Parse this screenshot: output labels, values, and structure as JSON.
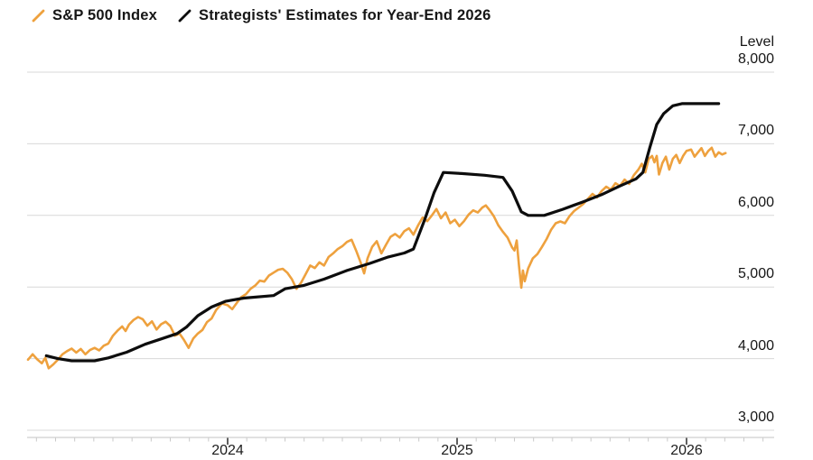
{
  "legend": {
    "series1_label": "S&P 500 Index",
    "series2_label": "Strategists' Estimates for Year-End 2026"
  },
  "y_axis": {
    "title": "Level",
    "tick_labels": [
      "8,000",
      "7,000",
      "6,000",
      "5,000",
      "4,000",
      "3,000"
    ],
    "tick_values": [
      8000,
      7000,
      6000,
      5000,
      4000,
      3000
    ]
  },
  "x_axis": {
    "tick_labels": [
      "2024",
      "2025",
      "2026"
    ],
    "tick_values": [
      2024,
      2025,
      2026
    ]
  },
  "colors": {
    "sp500_line": "#EEA13E",
    "estimate_line": "#0D0D0D",
    "gridline": "#D8D8D8",
    "axis_line": "#CFCFCF",
    "minor_tick": "#C9C9C9",
    "year_tick": "#2B2B2B",
    "text": "#161616",
    "background": "#FFFFFF"
  },
  "chart_data": {
    "type": "line",
    "title": "",
    "xlabel": "",
    "ylabel": "Level",
    "ylim": [
      3000,
      8000
    ],
    "xlim_decimal_years": [
      2023.12,
      2026.38
    ],
    "grid": "horizontal-only",
    "legend_position": "top-left",
    "x_tick_years": [
      2024,
      2025,
      2026
    ],
    "minor_ticks": "monthly",
    "y_ticks": [
      8000,
      7000,
      6000,
      5000,
      4000,
      3000
    ],
    "series": [
      {
        "name": "S&P 500 Index",
        "color": "#EEA13E",
        "width": 2.6,
        "points": [
          [
            2023.13,
            3985
          ],
          [
            2023.15,
            4060
          ],
          [
            2023.17,
            3990
          ],
          [
            2023.19,
            3935
          ],
          [
            2023.205,
            4010
          ],
          [
            2023.22,
            3865
          ],
          [
            2023.24,
            3920
          ],
          [
            2023.26,
            3985
          ],
          [
            2023.28,
            4060
          ],
          [
            2023.3,
            4105
          ],
          [
            2023.32,
            4140
          ],
          [
            2023.34,
            4085
          ],
          [
            2023.36,
            4135
          ],
          [
            2023.38,
            4060
          ],
          [
            2023.4,
            4120
          ],
          [
            2023.42,
            4150
          ],
          [
            2023.44,
            4115
          ],
          [
            2023.46,
            4180
          ],
          [
            2023.48,
            4210
          ],
          [
            2023.5,
            4320
          ],
          [
            2023.52,
            4390
          ],
          [
            2023.54,
            4450
          ],
          [
            2023.555,
            4385
          ],
          [
            2023.57,
            4475
          ],
          [
            2023.59,
            4540
          ],
          [
            2023.61,
            4580
          ],
          [
            2023.63,
            4550
          ],
          [
            2023.65,
            4460
          ],
          [
            2023.67,
            4520
          ],
          [
            2023.69,
            4405
          ],
          [
            2023.71,
            4480
          ],
          [
            2023.73,
            4515
          ],
          [
            2023.75,
            4455
          ],
          [
            2023.77,
            4320
          ],
          [
            2023.79,
            4350
          ],
          [
            2023.81,
            4260
          ],
          [
            2023.83,
            4150
          ],
          [
            2023.85,
            4280
          ],
          [
            2023.87,
            4350
          ],
          [
            2023.89,
            4400
          ],
          [
            2023.91,
            4510
          ],
          [
            2023.93,
            4560
          ],
          [
            2023.95,
            4680
          ],
          [
            2023.975,
            4770
          ],
          [
            2024.0,
            4745
          ],
          [
            2024.02,
            4690
          ],
          [
            2024.04,
            4780
          ],
          [
            2024.06,
            4860
          ],
          [
            2024.08,
            4900
          ],
          [
            2024.1,
            4975
          ],
          [
            2024.12,
            5020
          ],
          [
            2024.14,
            5090
          ],
          [
            2024.16,
            5075
          ],
          [
            2024.18,
            5160
          ],
          [
            2024.2,
            5200
          ],
          [
            2024.22,
            5240
          ],
          [
            2024.24,
            5255
          ],
          [
            2024.26,
            5200
          ],
          [
            2024.28,
            5110
          ],
          [
            2024.3,
            4975
          ],
          [
            2024.32,
            5060
          ],
          [
            2024.34,
            5180
          ],
          [
            2024.36,
            5300
          ],
          [
            2024.38,
            5265
          ],
          [
            2024.4,
            5345
          ],
          [
            2024.42,
            5300
          ],
          [
            2024.44,
            5420
          ],
          [
            2024.46,
            5470
          ],
          [
            2024.48,
            5530
          ],
          [
            2024.5,
            5570
          ],
          [
            2024.52,
            5630
          ],
          [
            2024.54,
            5660
          ],
          [
            2024.56,
            5510
          ],
          [
            2024.58,
            5340
          ],
          [
            2024.595,
            5190
          ],
          [
            2024.61,
            5400
          ],
          [
            2024.63,
            5560
          ],
          [
            2024.65,
            5640
          ],
          [
            2024.67,
            5470
          ],
          [
            2024.69,
            5590
          ],
          [
            2024.71,
            5700
          ],
          [
            2024.73,
            5740
          ],
          [
            2024.75,
            5690
          ],
          [
            2024.77,
            5780
          ],
          [
            2024.79,
            5820
          ],
          [
            2024.81,
            5730
          ],
          [
            2024.83,
            5860
          ],
          [
            2024.85,
            5970
          ],
          [
            2024.87,
            5920
          ],
          [
            2024.89,
            6000
          ],
          [
            2024.91,
            6090
          ],
          [
            2024.93,
            5960
          ],
          [
            2024.95,
            6040
          ],
          [
            2024.97,
            5890
          ],
          [
            2024.99,
            5940
          ],
          [
            2025.01,
            5850
          ],
          [
            2025.03,
            5920
          ],
          [
            2025.05,
            6010
          ],
          [
            2025.07,
            6070
          ],
          [
            2025.09,
            6040
          ],
          [
            2025.11,
            6110
          ],
          [
            2025.125,
            6140
          ],
          [
            2025.14,
            6080
          ],
          [
            2025.16,
            5990
          ],
          [
            2025.18,
            5860
          ],
          [
            2025.2,
            5770
          ],
          [
            2025.22,
            5690
          ],
          [
            2025.24,
            5550
          ],
          [
            2025.25,
            5510
          ],
          [
            2025.26,
            5650
          ],
          [
            2025.27,
            5290
          ],
          [
            2025.28,
            4990
          ],
          [
            2025.287,
            5230
          ],
          [
            2025.295,
            5080
          ],
          [
            2025.31,
            5260
          ],
          [
            2025.33,
            5400
          ],
          [
            2025.35,
            5460
          ],
          [
            2025.37,
            5560
          ],
          [
            2025.39,
            5670
          ],
          [
            2025.41,
            5800
          ],
          [
            2025.43,
            5890
          ],
          [
            2025.45,
            5915
          ],
          [
            2025.47,
            5890
          ],
          [
            2025.49,
            5990
          ],
          [
            2025.51,
            6060
          ],
          [
            2025.53,
            6110
          ],
          [
            2025.55,
            6160
          ],
          [
            2025.57,
            6230
          ],
          [
            2025.59,
            6300
          ],
          [
            2025.61,
            6250
          ],
          [
            2025.63,
            6340
          ],
          [
            2025.65,
            6400
          ],
          [
            2025.67,
            6360
          ],
          [
            2025.69,
            6450
          ],
          [
            2025.71,
            6410
          ],
          [
            2025.73,
            6500
          ],
          [
            2025.75,
            6440
          ],
          [
            2025.77,
            6560
          ],
          [
            2025.79,
            6640
          ],
          [
            2025.805,
            6720
          ],
          [
            2025.82,
            6600
          ],
          [
            2025.835,
            6790
          ],
          [
            2025.85,
            6830
          ],
          [
            2025.86,
            6740
          ],
          [
            2025.87,
            6830
          ],
          [
            2025.88,
            6570
          ],
          [
            2025.895,
            6730
          ],
          [
            2025.91,
            6820
          ],
          [
            2025.925,
            6640
          ],
          [
            2025.94,
            6790
          ],
          [
            2025.955,
            6845
          ],
          [
            2025.97,
            6730
          ],
          [
            2025.985,
            6830
          ],
          [
            2026.0,
            6900
          ],
          [
            2026.02,
            6920
          ],
          [
            2026.035,
            6820
          ],
          [
            2026.05,
            6880
          ],
          [
            2026.065,
            6940
          ],
          [
            2026.08,
            6830
          ],
          [
            2026.095,
            6900
          ],
          [
            2026.11,
            6945
          ],
          [
            2026.125,
            6820
          ],
          [
            2026.14,
            6880
          ],
          [
            2026.155,
            6850
          ],
          [
            2026.17,
            6870
          ]
        ]
      },
      {
        "name": "Strategists' Estimates for Year-End 2026",
        "color": "#0D0D0D",
        "width": 3.2,
        "points": [
          [
            2023.21,
            4040
          ],
          [
            2023.26,
            4000
          ],
          [
            2023.32,
            3970
          ],
          [
            2023.42,
            3970
          ],
          [
            2023.48,
            4010
          ],
          [
            2023.56,
            4090
          ],
          [
            2023.64,
            4200
          ],
          [
            2023.71,
            4275
          ],
          [
            2023.78,
            4350
          ],
          [
            2023.82,
            4440
          ],
          [
            2023.87,
            4600
          ],
          [
            2023.93,
            4720
          ],
          [
            2023.99,
            4800
          ],
          [
            2024.07,
            4845
          ],
          [
            2024.2,
            4880
          ],
          [
            2024.25,
            4975
          ],
          [
            2024.33,
            5020
          ],
          [
            2024.42,
            5110
          ],
          [
            2024.52,
            5230
          ],
          [
            2024.62,
            5330
          ],
          [
            2024.7,
            5420
          ],
          [
            2024.77,
            5475
          ],
          [
            2024.81,
            5530
          ],
          [
            2024.86,
            5950
          ],
          [
            2024.9,
            6320
          ],
          [
            2024.94,
            6600
          ],
          [
            2025.02,
            6585
          ],
          [
            2025.12,
            6560
          ],
          [
            2025.2,
            6530
          ],
          [
            2025.24,
            6340
          ],
          [
            2025.28,
            6050
          ],
          [
            2025.31,
            6000
          ],
          [
            2025.38,
            6000
          ],
          [
            2025.46,
            6085
          ],
          [
            2025.55,
            6190
          ],
          [
            2025.63,
            6290
          ],
          [
            2025.71,
            6410
          ],
          [
            2025.78,
            6510
          ],
          [
            2025.81,
            6600
          ],
          [
            2025.84,
            6950
          ],
          [
            2025.87,
            7270
          ],
          [
            2025.9,
            7420
          ],
          [
            2025.94,
            7530
          ],
          [
            2025.98,
            7560
          ],
          [
            2026.14,
            7560
          ]
        ]
      }
    ]
  }
}
